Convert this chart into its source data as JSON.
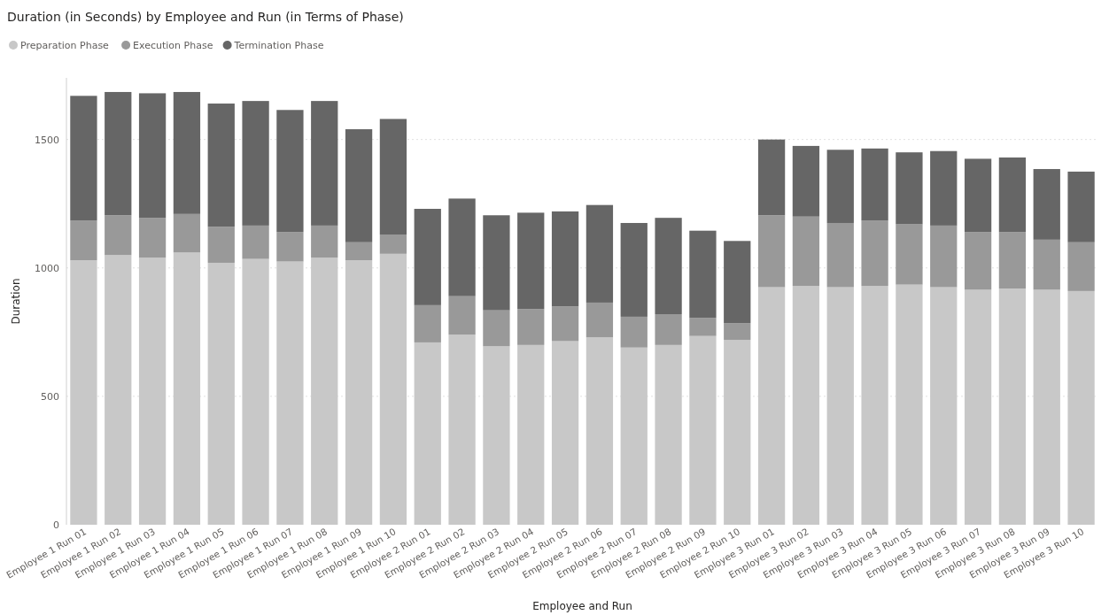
{
  "chart_data": {
    "type": "bar",
    "title": "Duration (in Seconds) by Employee and Run (in Terms of Phase)",
    "xlabel": "Employee and Run",
    "ylabel": "Duration",
    "categories": [
      "Employee 1 Run 01",
      "Employee 1 Run 02",
      "Employee 1 Run 03",
      "Employee 1 Run 04",
      "Employee 1 Run 05",
      "Employee 1 Run 06",
      "Employee 1 Run 07",
      "Employee 1 Run 08",
      "Employee 1 Run 09",
      "Employee 1 Run 10",
      "Employee 2 Run 01",
      "Employee 2 Run 02",
      "Employee 2 Run 03",
      "Employee 2 Run 04",
      "Employee 2 Run 05",
      "Employee 2 Run 06",
      "Employee 2 Run 07",
      "Employee 2 Run 08",
      "Employee 2 Run 09",
      "Employee 2 Run 10",
      "Employee 3 Run 01",
      "Employee 3 Run 02",
      "Employee 3 Run 03",
      "Employee 3 Run 04",
      "Employee 3 Run 05",
      "Employee 3 Run 06",
      "Employee 3 Run 07",
      "Employee 3 Run 08",
      "Employee 3 Run 09",
      "Employee 3 Run 10"
    ],
    "stacked": true,
    "series": [
      {
        "name": "Preparation Phase",
        "color": "#c8c8c8",
        "values": [
          1030,
          1050,
          1040,
          1060,
          1020,
          1035,
          1025,
          1040,
          1030,
          1055,
          710,
          740,
          695,
          700,
          715,
          730,
          690,
          700,
          735,
          720,
          925,
          930,
          925,
          930,
          935,
          925,
          915,
          920,
          915,
          910
        ]
      },
      {
        "name": "Execution Phase",
        "color": "#999999",
        "values": [
          155,
          155,
          155,
          150,
          140,
          130,
          115,
          125,
          70,
          75,
          145,
          150,
          140,
          140,
          135,
          135,
          120,
          120,
          70,
          65,
          280,
          270,
          250,
          255,
          235,
          240,
          225,
          220,
          195,
          190
        ]
      },
      {
        "name": "Termination Phase",
        "color": "#666666",
        "values": [
          485,
          480,
          485,
          475,
          480,
          485,
          475,
          485,
          440,
          450,
          375,
          380,
          370,
          375,
          370,
          380,
          365,
          375,
          340,
          320,
          295,
          275,
          285,
          280,
          280,
          290,
          285,
          290,
          275,
          275
        ]
      }
    ],
    "ylim": [
      0,
      1740
    ],
    "yticks": [
      0,
      500,
      1000,
      1500
    ],
    "grid": "y",
    "legend": "top left"
  }
}
